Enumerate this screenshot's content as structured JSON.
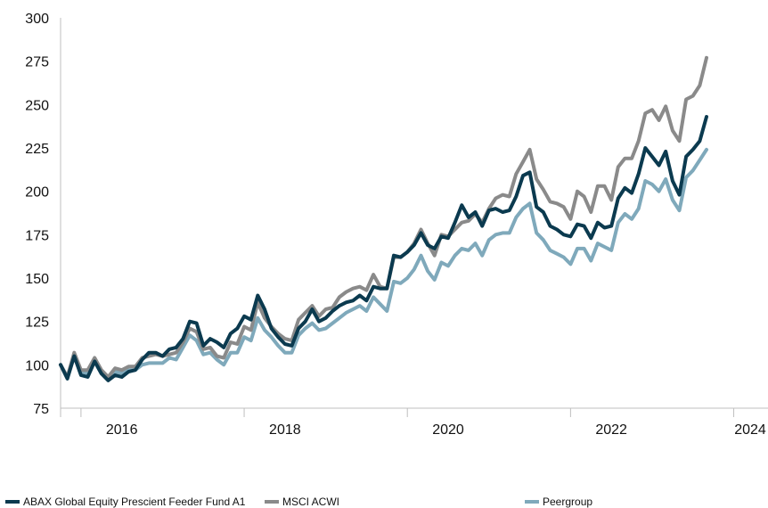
{
  "chart_data": {
    "type": "line",
    "x_start": "2015.75",
    "x_step_months": 1,
    "xlim": [
      2015.75,
      2024.42
    ],
    "ylim": [
      75,
      300
    ],
    "yticks": [
      75,
      100,
      125,
      150,
      175,
      200,
      225,
      250,
      275,
      300
    ],
    "xticks": [
      "2016",
      "2018",
      "2020",
      "2022",
      "2024"
    ],
    "xtick_years": [
      2016,
      2018,
      2020,
      2022,
      2024
    ],
    "xlabel": "",
    "ylabel": "",
    "title": "",
    "grid": false,
    "legend_position": "bottom",
    "series": [
      {
        "name": "ABAX Global Equity Prescient Feeder Fund A1",
        "color": "#0b3a4f",
        "values": [
          100,
          92,
          105,
          94,
          93,
          102,
          95,
          91,
          94,
          93,
          96,
          97,
          103,
          107,
          107,
          105,
          109,
          110,
          115,
          125,
          124,
          111,
          115,
          113,
          110,
          118,
          121,
          128,
          126,
          140,
          132,
          121,
          116,
          112,
          111,
          121,
          125,
          132,
          125,
          127,
          131,
          134,
          136,
          137,
          140,
          137,
          145,
          144,
          144,
          163,
          162,
          165,
          169,
          176,
          169,
          167,
          174,
          173,
          182,
          192,
          185,
          188,
          180,
          189,
          190,
          188,
          189,
          197,
          209,
          211,
          191,
          188,
          180,
          178,
          175,
          174,
          181,
          180,
          173,
          182,
          179,
          180,
          196,
          202,
          199,
          210,
          225,
          220,
          215,
          223,
          206,
          198,
          220,
          224,
          229,
          243
        ]
      },
      {
        "name": "MSCI ACWI",
        "color": "#8a8a8a",
        "values": [
          100,
          93,
          107,
          97,
          97,
          104,
          97,
          93,
          98,
          97,
          99,
          99,
          104,
          105,
          106,
          105,
          106,
          107,
          113,
          121,
          119,
          109,
          110,
          105,
          104,
          113,
          112,
          122,
          120,
          136,
          127,
          122,
          118,
          115,
          114,
          126,
          130,
          134,
          128,
          132,
          133,
          139,
          142,
          144,
          145,
          143,
          152,
          145,
          144,
          162,
          162,
          165,
          170,
          178,
          170,
          163,
          175,
          174,
          178,
          182,
          183,
          187,
          182,
          190,
          196,
          198,
          197,
          210,
          217,
          224,
          207,
          201,
          194,
          193,
          191,
          184,
          200,
          197,
          188,
          203,
          203,
          195,
          214,
          219,
          219,
          229,
          245,
          247,
          241,
          249,
          235,
          229,
          253,
          255,
          261,
          277
        ]
      },
      {
        "name": "Peergroup",
        "color": "#7fa9bb",
        "values": [
          100,
          93,
          105,
          96,
          95,
          102,
          95,
          92,
          96,
          95,
          97,
          97,
          100,
          101,
          101,
          101,
          104,
          103,
          110,
          117,
          114,
          106,
          107,
          103,
          100,
          107,
          107,
          116,
          114,
          127,
          120,
          116,
          111,
          107,
          107,
          117,
          121,
          124,
          120,
          121,
          124,
          127,
          130,
          132,
          134,
          131,
          139,
          135,
          131,
          148,
          147,
          150,
          155,
          163,
          154,
          149,
          159,
          157,
          163,
          167,
          166,
          170,
          163,
          172,
          175,
          176,
          176,
          185,
          190,
          193,
          176,
          172,
          166,
          164,
          162,
          158,
          167,
          167,
          160,
          170,
          168,
          166,
          182,
          187,
          184,
          190,
          206,
          204,
          200,
          207,
          195,
          189,
          208,
          212,
          218,
          224
        ]
      }
    ]
  }
}
